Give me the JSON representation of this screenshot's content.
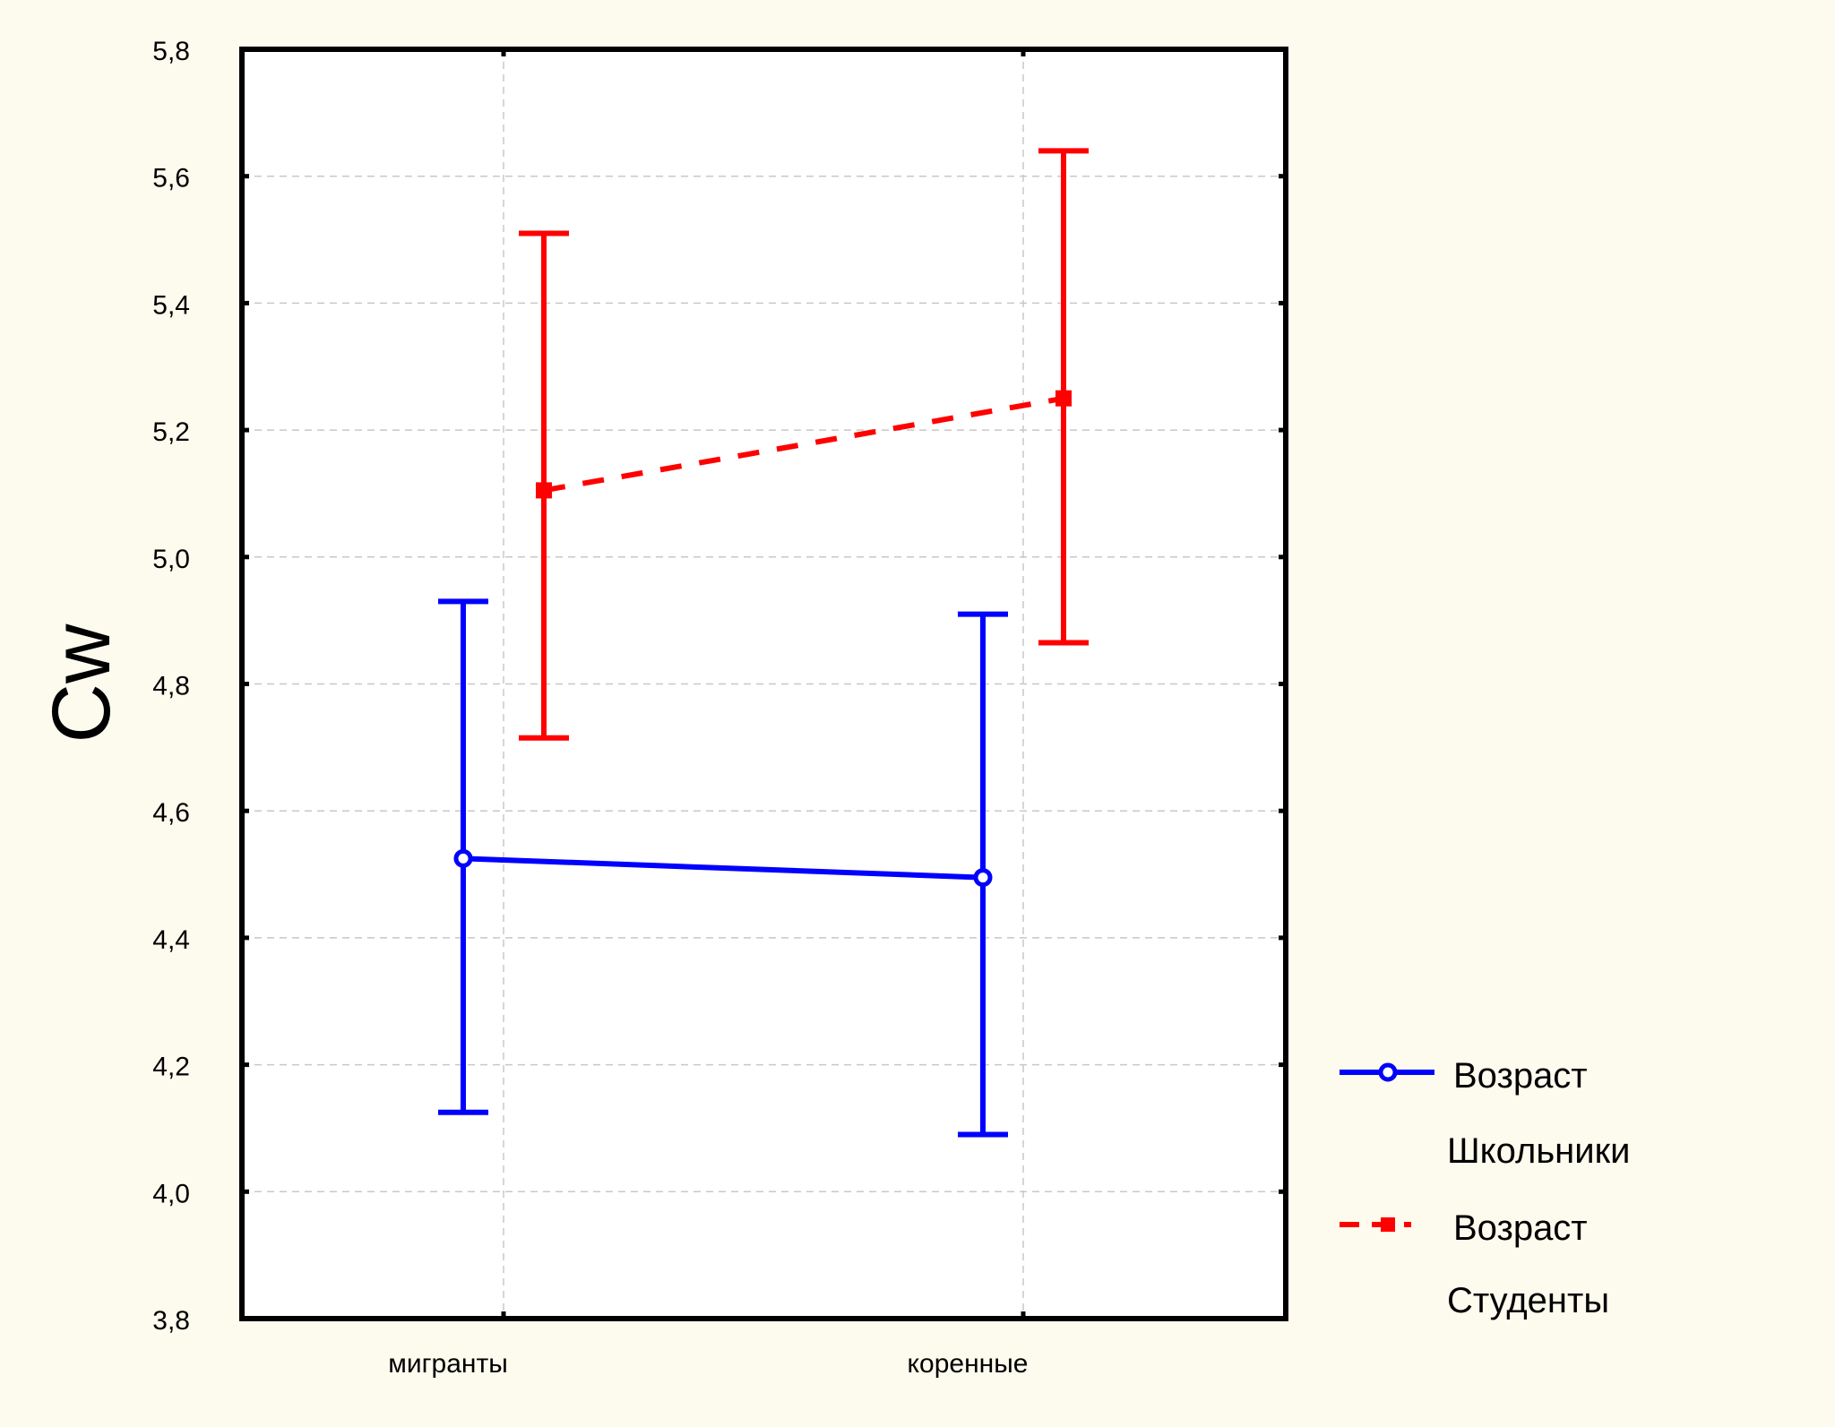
{
  "chart_data": {
    "type": "line",
    "title": "",
    "xlabel": "",
    "ylabel": "Cw",
    "categories": [
      "мигранты",
      "коренные"
    ],
    "ylim": [
      3.8,
      5.8
    ],
    "yticks": [
      "3,8",
      "4,0",
      "4,2",
      "4,4",
      "4,6",
      "4,8",
      "5,0",
      "5,2",
      "5,4",
      "5,6",
      "5,8"
    ],
    "grid": true,
    "legend_position": "right",
    "series": [
      {
        "name": "Возраст",
        "group": "Школьники",
        "color": "#0000ff",
        "line_style": "solid",
        "marker": "circle",
        "values": [
          4.525,
          4.495
        ],
        "lower": [
          4.125,
          4.09
        ],
        "upper": [
          4.93,
          4.91
        ]
      },
      {
        "name": "Возраст",
        "group": "Студенты",
        "color": "#ff0000",
        "line_style": "dashed",
        "marker": "square",
        "values": [
          5.105,
          5.25
        ],
        "lower": [
          4.715,
          4.865
        ],
        "upper": [
          5.51,
          5.64
        ]
      }
    ]
  }
}
